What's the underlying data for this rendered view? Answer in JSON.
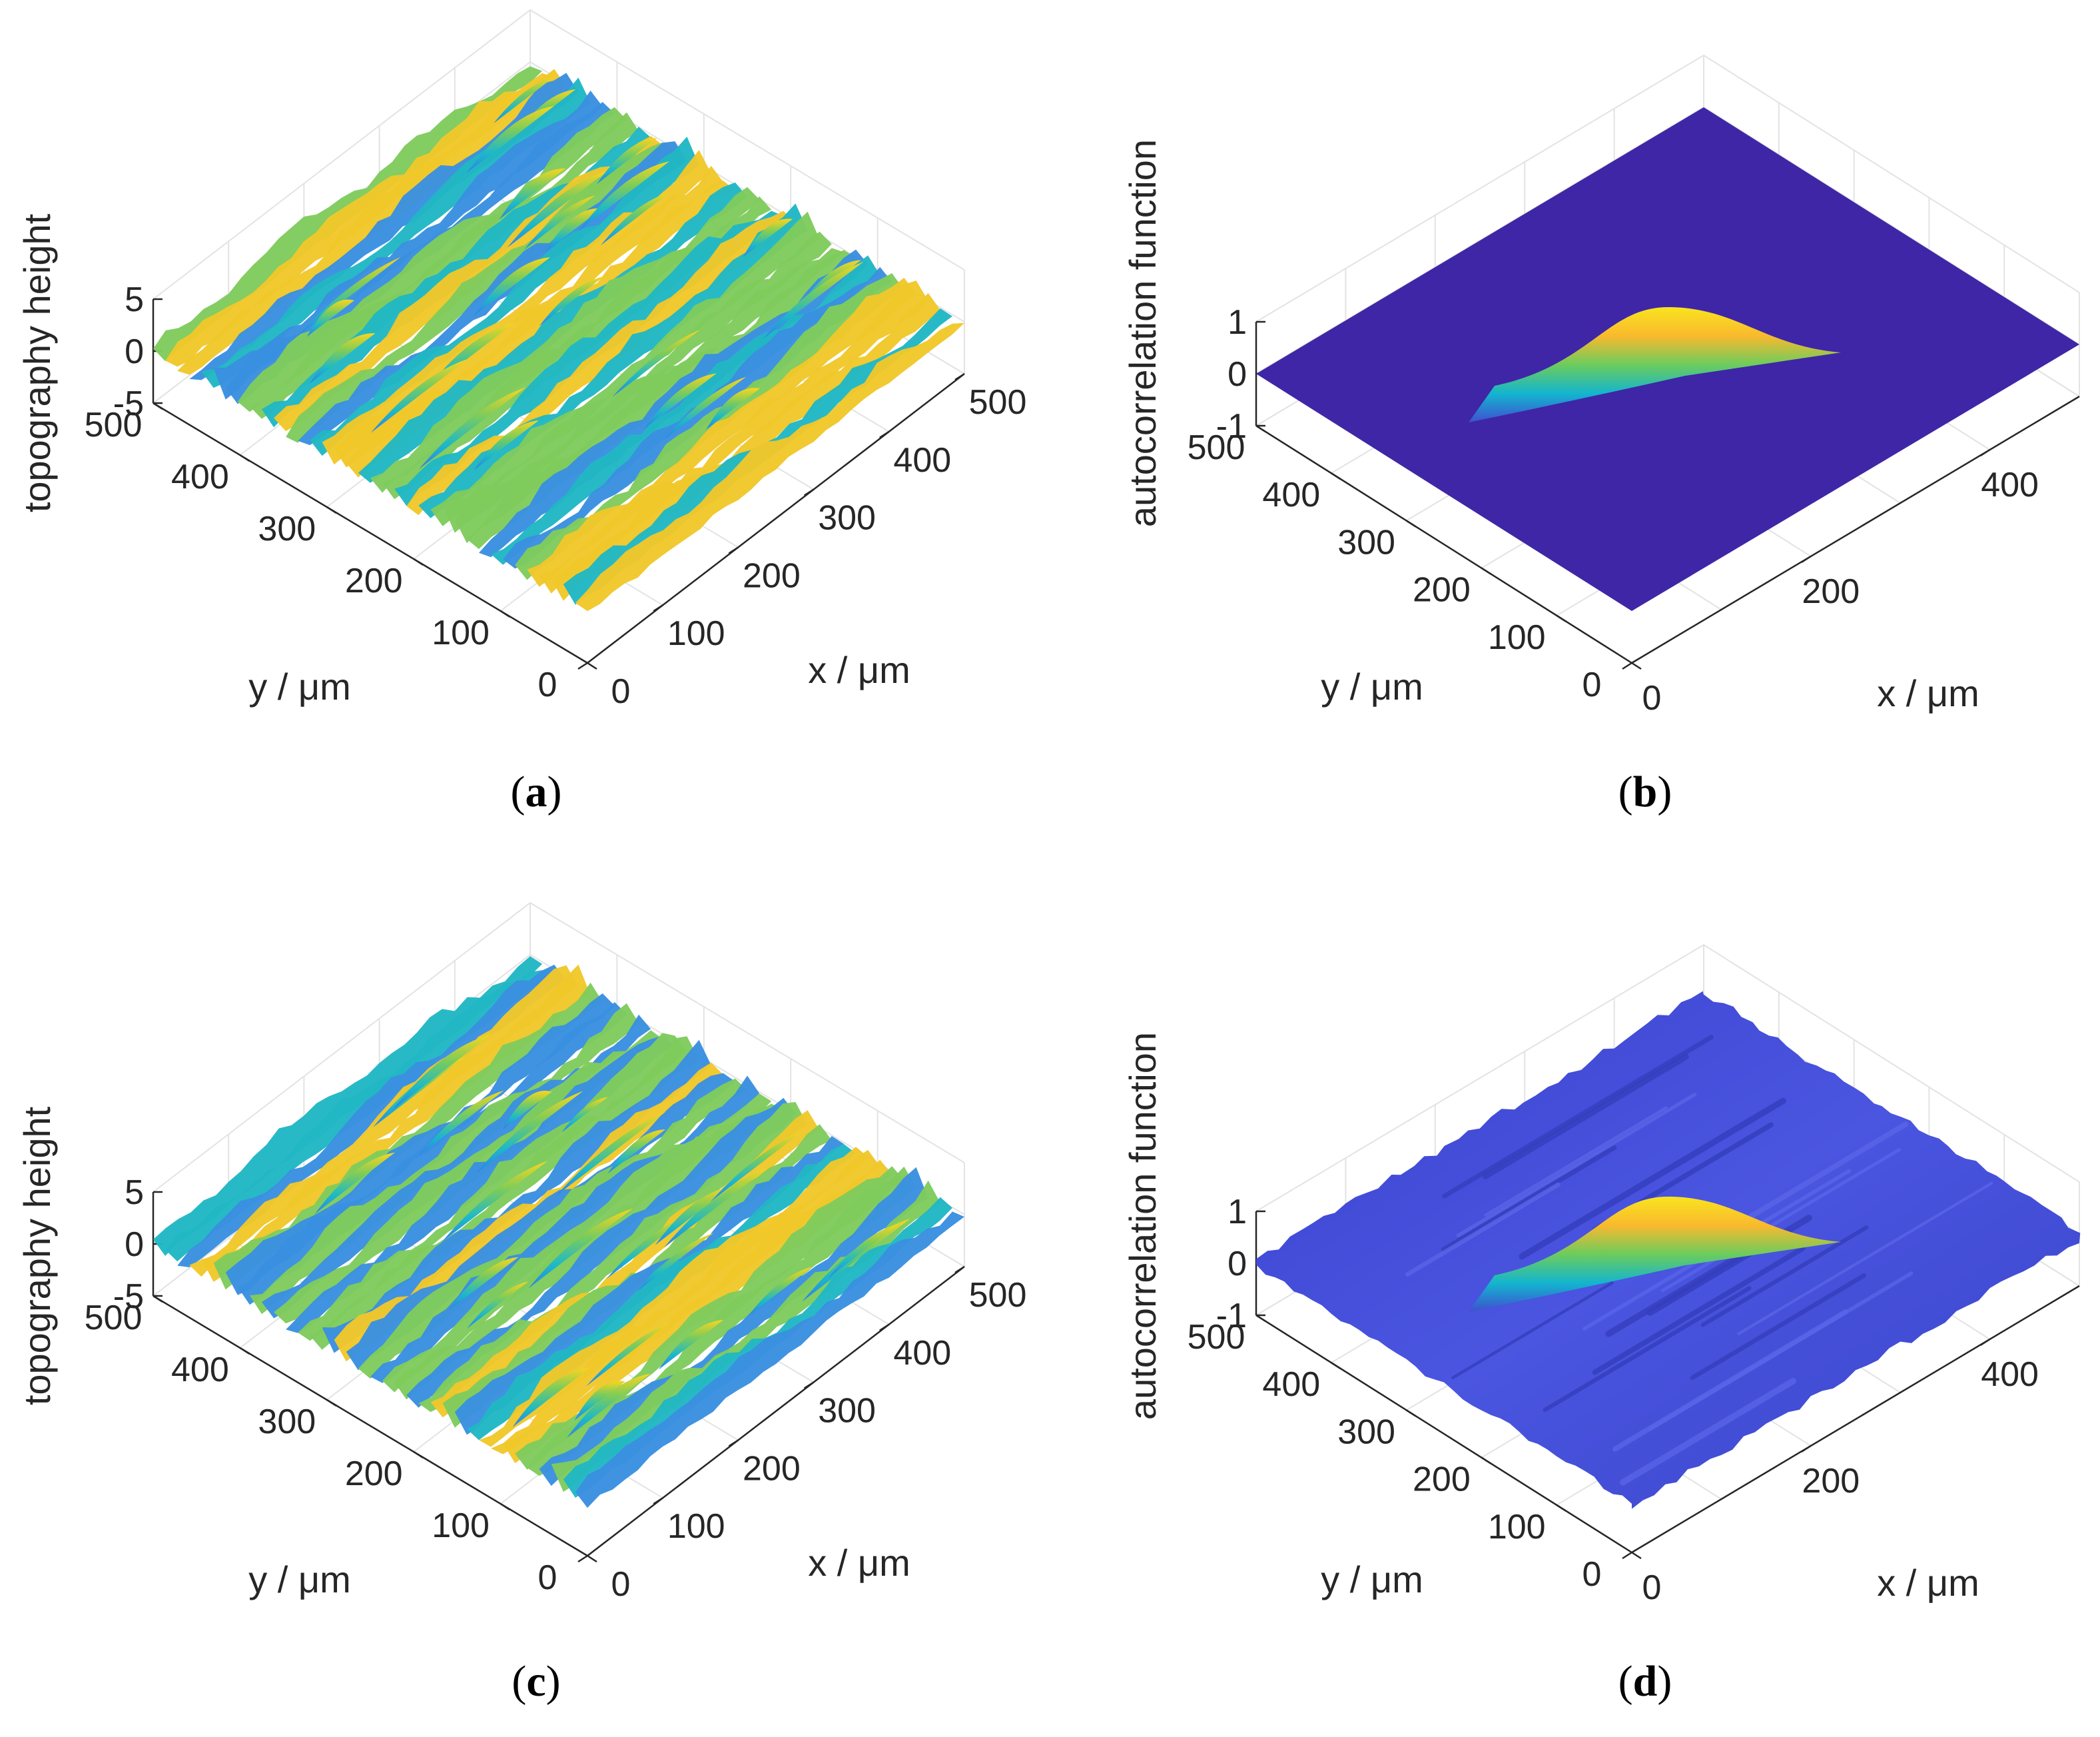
{
  "panels": [
    {
      "id": "a",
      "caption_letter": "a",
      "zlabel": "topography height",
      "xlabel": "x / μm",
      "ylabel": "y / μm",
      "x_ticks": [
        "0",
        "100",
        "200",
        "300",
        "400",
        "500"
      ],
      "y_ticks": [
        "0",
        "100",
        "200",
        "300",
        "400",
        "500"
      ],
      "z_ticks": [
        "-5",
        "0",
        "5"
      ]
    },
    {
      "id": "b",
      "caption_letter": "b",
      "zlabel": "autocorrelation function",
      "xlabel": "x / μm",
      "ylabel": "y / μm",
      "x_ticks": [
        "0",
        "200",
        "400"
      ],
      "y_ticks": [
        "0",
        "100",
        "200",
        "300",
        "400",
        "500"
      ],
      "z_ticks": [
        "-1",
        "0",
        "1"
      ]
    },
    {
      "id": "c",
      "caption_letter": "c",
      "zlabel": "topography height",
      "xlabel": "x / μm",
      "ylabel": "y / μm",
      "x_ticks": [
        "0",
        "100",
        "200",
        "300",
        "400",
        "500"
      ],
      "y_ticks": [
        "0",
        "100",
        "200",
        "300",
        "400",
        "500"
      ],
      "z_ticks": [
        "-5",
        "0",
        "5"
      ]
    },
    {
      "id": "d",
      "caption_letter": "d",
      "zlabel": "autocorrelation function",
      "xlabel": "x / μm",
      "ylabel": "y / μm",
      "x_ticks": [
        "0",
        "200",
        "400"
      ],
      "y_ticks": [
        "0",
        "100",
        "200",
        "300",
        "400",
        "500"
      ],
      "z_ticks": [
        "-1",
        "0",
        "1"
      ]
    }
  ],
  "chart_data": [
    {
      "type": "surface",
      "panel": "a",
      "surface": "rough topography (anisotropic ridges)",
      "xlim": [
        0,
        500
      ],
      "ylim": [
        0,
        500
      ],
      "zlim": [
        -5,
        5
      ],
      "grid": true,
      "colormap": [
        "#3e26a8",
        "#2f74ed",
        "#13becc",
        "#82cc5d",
        "#f9b92d",
        "#f9e41f"
      ]
    },
    {
      "type": "surface",
      "panel": "b",
      "surface": "autocorrelation function with single central peak",
      "peak_value": 1,
      "xlim": [
        0,
        500
      ],
      "ylim": [
        0,
        500
      ],
      "zlim": [
        -1,
        1
      ],
      "grid": true,
      "colormap": [
        "#3e26a8",
        "#2f74ed",
        "#13becc",
        "#82cc5d",
        "#f9b92d",
        "#f9e41f"
      ]
    },
    {
      "type": "surface",
      "panel": "c",
      "surface": "rough topography (anisotropic ridges)",
      "xlim": [
        0,
        500
      ],
      "ylim": [
        0,
        500
      ],
      "zlim": [
        -5,
        5
      ],
      "grid": true,
      "colormap": [
        "#3e26a8",
        "#2f74ed",
        "#13becc",
        "#82cc5d",
        "#f9b92d",
        "#f9e41f"
      ]
    },
    {
      "type": "surface",
      "panel": "d",
      "surface": "autocorrelation function with central peak and noisy background",
      "peak_value": 1,
      "xlim": [
        0,
        500
      ],
      "ylim": [
        0,
        500
      ],
      "zlim": [
        -1,
        1
      ],
      "grid": true,
      "colormap": [
        "#3e26a8",
        "#2f74ed",
        "#13becc",
        "#82cc5d",
        "#f9b92d",
        "#f9e41f"
      ]
    }
  ]
}
